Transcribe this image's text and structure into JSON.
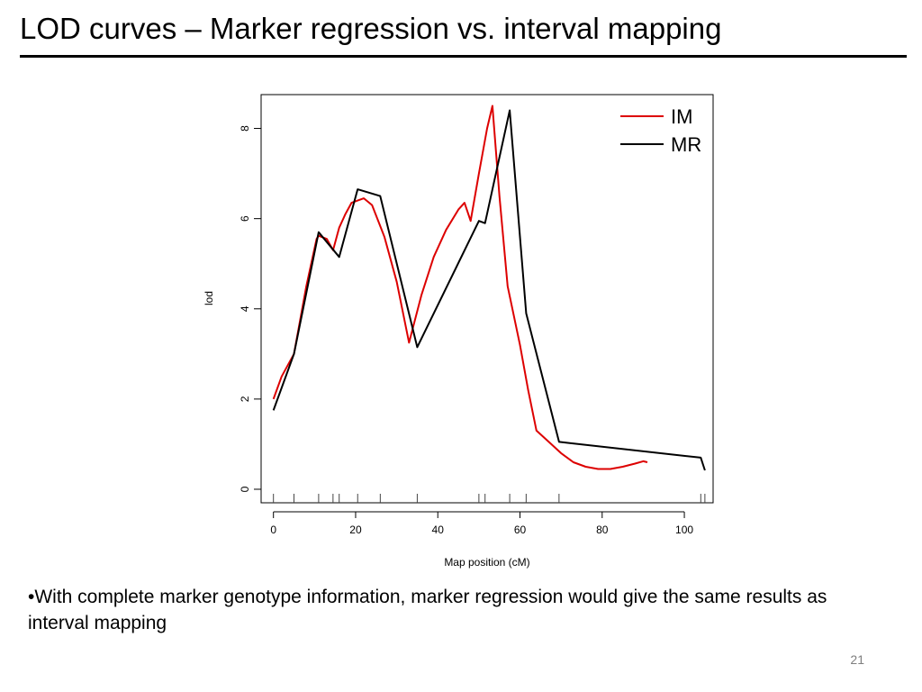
{
  "slide": {
    "title": "LOD curves – Marker regression vs. interval mapping",
    "bullet": "•With complete marker genotype information, marker regression would give the same results as interval mapping",
    "page_number": "21"
  },
  "chart_data": {
    "type": "line",
    "title": "",
    "xlabel": "Map position (cM)",
    "ylabel": "lod",
    "xlim": [
      -3,
      107
    ],
    "ylim": [
      -0.3,
      8.75
    ],
    "x_ticks": [
      0,
      20,
      40,
      60,
      80,
      100
    ],
    "y_ticks": [
      0,
      2,
      4,
      6,
      8
    ],
    "grid": false,
    "legend_position": "top-right",
    "marker_positions": [
      0,
      5,
      11,
      14.5,
      16,
      20.5,
      26,
      35,
      50,
      51.5,
      57.5,
      61.5,
      69.5,
      104,
      105
    ],
    "series": [
      {
        "name": "IM",
        "color": "#dd0000",
        "x": [
          0,
          2,
          5,
          8,
          10.5,
          11,
          13,
          14.5,
          16,
          17.5,
          19,
          20.5,
          22,
          24,
          27,
          30,
          33,
          36,
          39,
          42,
          45,
          46.5,
          48,
          50,
          52,
          53.3,
          55,
          57,
          60,
          62,
          64,
          67,
          70,
          73,
          76,
          79,
          82,
          85,
          88,
          90,
          91
        ],
        "y": [
          2.0,
          2.5,
          3.0,
          4.5,
          5.55,
          5.62,
          5.55,
          5.3,
          5.8,
          6.1,
          6.35,
          6.4,
          6.45,
          6.3,
          5.6,
          4.6,
          3.25,
          4.3,
          5.15,
          5.75,
          6.2,
          6.35,
          5.95,
          7.0,
          8.0,
          8.5,
          6.5,
          4.5,
          3.2,
          2.2,
          1.3,
          1.05,
          0.8,
          0.6,
          0.5,
          0.45,
          0.45,
          0.5,
          0.57,
          0.62,
          0.6
        ]
      },
      {
        "name": "MR",
        "color": "#000000",
        "x": [
          0,
          5,
          11,
          16,
          20.5,
          26,
          35,
          50,
          51.5,
          57.5,
          61.5,
          69.5,
          104,
          105
        ],
        "y": [
          1.75,
          3.0,
          5.7,
          5.15,
          6.65,
          6.5,
          3.15,
          5.95,
          5.9,
          8.4,
          3.9,
          1.05,
          0.7,
          0.42
        ]
      }
    ]
  }
}
